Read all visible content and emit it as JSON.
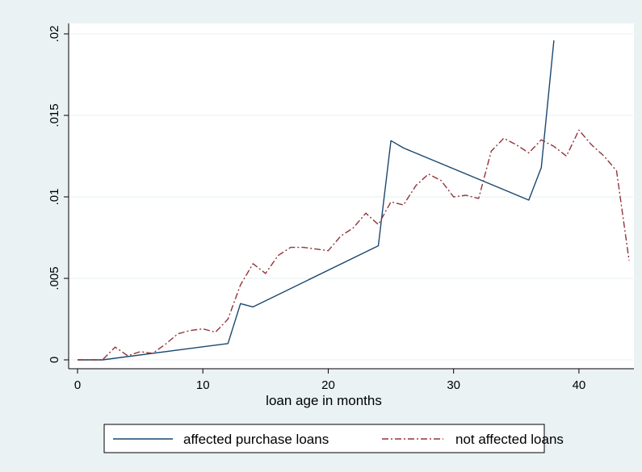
{
  "chart_data": {
    "type": "line",
    "title": "",
    "xlabel": "loan age in months",
    "ylabel": "",
    "xlim": [
      0,
      44
    ],
    "ylim": [
      0,
      0.02
    ],
    "x_ticks": [
      0,
      10,
      20,
      30,
      40
    ],
    "x_tick_labels": [
      "0",
      "10",
      "20",
      "30",
      "40"
    ],
    "y_ticks": [
      0,
      0.005,
      0.01,
      0.015,
      0.02
    ],
    "y_tick_labels": [
      "0",
      ".005",
      ".01",
      ".015",
      ".02"
    ],
    "grid": "horizontal",
    "legend_position": "bottom",
    "series": [
      {
        "name": "affected purchase loans",
        "color": "#1a476f",
        "style": "solid",
        "points": [
          [
            0,
            0
          ],
          [
            2,
            0
          ],
          [
            12,
            0.001
          ],
          [
            13,
            0.00345
          ],
          [
            14,
            0.00325
          ],
          [
            24,
            0.007
          ],
          [
            25,
            0.01345
          ],
          [
            26,
            0.013
          ],
          [
            36,
            0.0098
          ],
          [
            37,
            0.0118
          ],
          [
            38,
            0.0196
          ]
        ]
      },
      {
        "name": "not affected loans",
        "color": "#90353b",
        "style": "dash-dot",
        "points": [
          [
            0,
            0
          ],
          [
            1,
            0
          ],
          [
            2,
            0
          ],
          [
            3,
            0.00078
          ],
          [
            4,
            0.00025
          ],
          [
            5,
            0.0005
          ],
          [
            6,
            0.0004
          ],
          [
            7,
            0.00095
          ],
          [
            8,
            0.0016
          ],
          [
            9,
            0.0018
          ],
          [
            10,
            0.0019
          ],
          [
            11,
            0.0017
          ],
          [
            12,
            0.0025
          ],
          [
            13,
            0.0046
          ],
          [
            14,
            0.0059
          ],
          [
            15,
            0.0053
          ],
          [
            16,
            0.0064
          ],
          [
            17,
            0.0069
          ],
          [
            18,
            0.0069
          ],
          [
            19,
            0.0068
          ],
          [
            20,
            0.0067
          ],
          [
            21,
            0.0076
          ],
          [
            22,
            0.0081
          ],
          [
            23,
            0.009
          ],
          [
            24,
            0.0083
          ],
          [
            25,
            0.0097
          ],
          [
            26,
            0.0095
          ],
          [
            27,
            0.0107
          ],
          [
            28,
            0.0114
          ],
          [
            29,
            0.011
          ],
          [
            30,
            0.01
          ],
          [
            31,
            0.0101
          ],
          [
            32,
            0.0099
          ],
          [
            33,
            0.0128
          ],
          [
            34,
            0.0136
          ],
          [
            35,
            0.0132
          ],
          [
            36,
            0.0127
          ],
          [
            37,
            0.0135
          ],
          [
            38,
            0.0131
          ],
          [
            39,
            0.0125
          ],
          [
            40,
            0.0141
          ],
          [
            41,
            0.0132
          ],
          [
            42,
            0.0125
          ],
          [
            43,
            0.0116
          ],
          [
            44,
            0.0061
          ]
        ]
      }
    ]
  }
}
